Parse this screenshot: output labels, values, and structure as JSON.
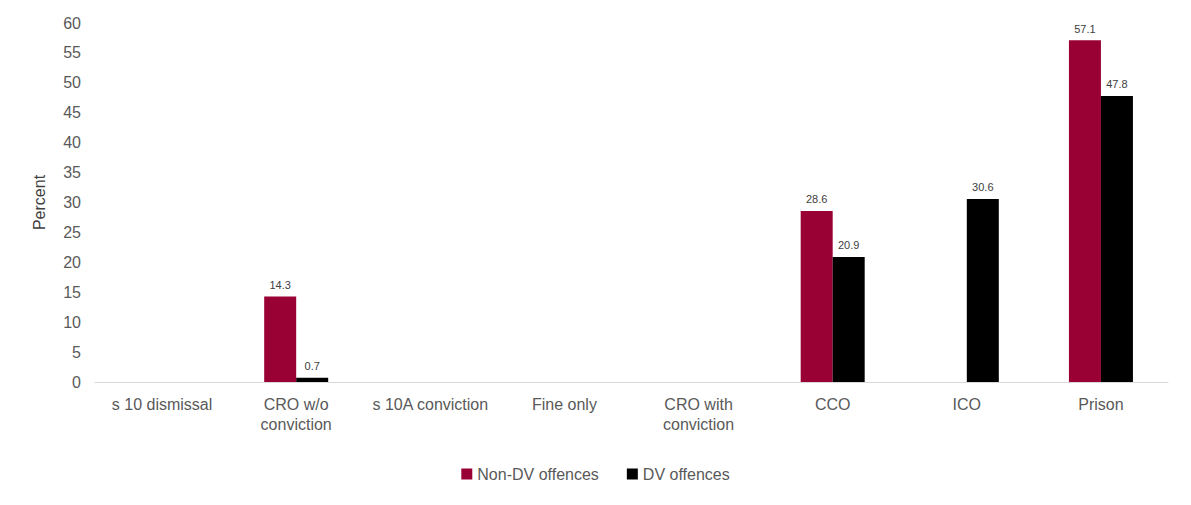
{
  "chart_data": {
    "type": "bar",
    "y_label": "Percent",
    "categories": [
      "s 10 dismissal",
      "CRO w/o\nconviction",
      "s 10A conviction",
      "Fine only",
      "CRO with\nconviction",
      "CCO",
      "ICO",
      "Prison"
    ],
    "series": [
      {
        "name": "Non-DV offences",
        "color": "#990033",
        "values": [
          null,
          14.3,
          null,
          null,
          null,
          28.6,
          null,
          57.1
        ]
      },
      {
        "name": "DV offences",
        "color": "#000000",
        "values": [
          null,
          0.7,
          null,
          null,
          null,
          20.9,
          30.6,
          47.8
        ]
      }
    ],
    "ylim": [
      0,
      60
    ],
    "yticks": [
      0,
      5,
      10,
      15,
      20,
      25,
      30,
      35,
      40,
      45,
      50,
      55,
      60
    ],
    "grid": false,
    "legend": "bottom",
    "data_labels": true
  }
}
